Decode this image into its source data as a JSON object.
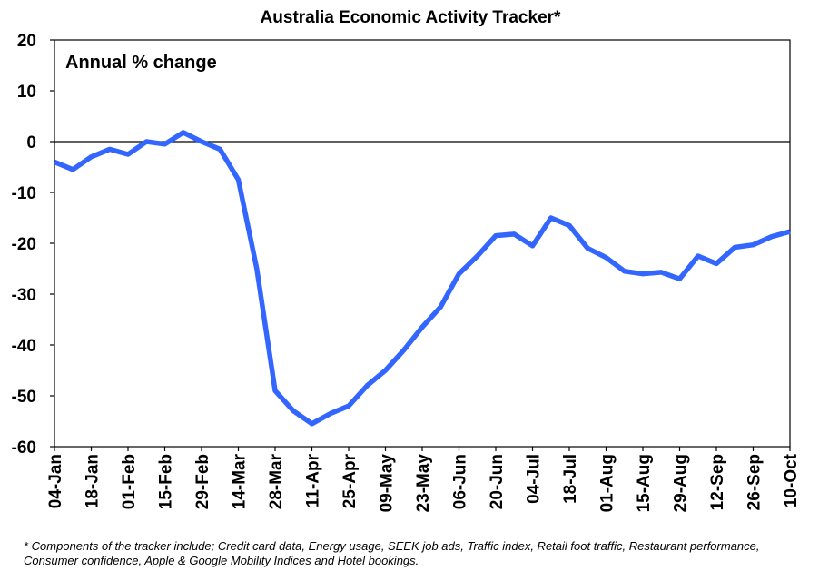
{
  "chart_data": {
    "type": "line",
    "title": "Australia Economic Activity Tracker*",
    "annotation": "Annual % change",
    "ylim": [
      -60,
      20
    ],
    "yticks": [
      20,
      10,
      0,
      -10,
      -20,
      -30,
      -40,
      -50,
      -60
    ],
    "xlim": [
      "2020-01-04",
      "2020-10-10"
    ],
    "x_tick_labels": [
      "04-Jan",
      "18-Jan",
      "01-Feb",
      "15-Feb",
      "29-Feb",
      "14-Mar",
      "28-Mar",
      "11-Apr",
      "25-Apr",
      "09-May",
      "23-May",
      "06-Jun",
      "20-Jun",
      "04-Jul",
      "18-Jul",
      "01-Aug",
      "15-Aug",
      "29-Aug",
      "12-Sep",
      "26-Sep",
      "10-Oct"
    ],
    "x_tick_dates": [
      "2020-01-04",
      "2020-01-18",
      "2020-02-01",
      "2020-02-15",
      "2020-02-29",
      "2020-03-14",
      "2020-03-28",
      "2020-04-11",
      "2020-04-25",
      "2020-05-09",
      "2020-05-23",
      "2020-06-06",
      "2020-06-20",
      "2020-07-04",
      "2020-07-18",
      "2020-08-01",
      "2020-08-15",
      "2020-08-29",
      "2020-09-12",
      "2020-09-26",
      "2020-10-10"
    ],
    "grid": false,
    "series": [
      {
        "color": "#3366ff",
        "points": [
          [
            "2020-01-04",
            -4.0
          ],
          [
            "2020-01-11",
            -5.5
          ],
          [
            "2020-01-18",
            -3.0
          ],
          [
            "2020-01-25",
            -1.5
          ],
          [
            "2020-02-01",
            -2.5
          ],
          [
            "2020-02-08",
            0.0
          ],
          [
            "2020-02-15",
            -0.5
          ],
          [
            "2020-02-22",
            1.8
          ],
          [
            "2020-02-29",
            0.0
          ],
          [
            "2020-03-07",
            -1.5
          ],
          [
            "2020-03-14",
            -7.5
          ],
          [
            "2020-03-21",
            -25.0
          ],
          [
            "2020-03-28",
            -49.0
          ],
          [
            "2020-04-04",
            -53.0
          ],
          [
            "2020-04-11",
            -55.5
          ],
          [
            "2020-04-18",
            -53.5
          ],
          [
            "2020-04-25",
            -52.0
          ],
          [
            "2020-05-02",
            -48.0
          ],
          [
            "2020-05-09",
            -45.0
          ],
          [
            "2020-05-16",
            -41.0
          ],
          [
            "2020-05-23",
            -36.5
          ],
          [
            "2020-05-30",
            -32.5
          ],
          [
            "2020-06-06",
            -26.0
          ],
          [
            "2020-06-13",
            -22.5
          ],
          [
            "2020-06-20",
            -18.5
          ],
          [
            "2020-06-27",
            -18.2
          ],
          [
            "2020-07-04",
            -20.5
          ],
          [
            "2020-07-11",
            -15.0
          ],
          [
            "2020-07-18",
            -16.5
          ],
          [
            "2020-07-25",
            -21.0
          ],
          [
            "2020-08-01",
            -22.8
          ],
          [
            "2020-08-08",
            -25.5
          ],
          [
            "2020-08-15",
            -26.0
          ],
          [
            "2020-08-22",
            -25.7
          ],
          [
            "2020-08-29",
            -27.0
          ],
          [
            "2020-09-05",
            -22.5
          ],
          [
            "2020-09-12",
            -24.0
          ],
          [
            "2020-09-19",
            -20.8
          ],
          [
            "2020-09-26",
            -20.3
          ],
          [
            "2020-10-03",
            -18.7
          ],
          [
            "2020-10-10",
            -17.7
          ]
        ]
      }
    ]
  },
  "footnote": "* Components of the tracker include; Credit card data, Energy usage, SEEK job ads, Traffic index, Retail foot traffic, Restaurant performance, Consumer confidence, Apple & Google Mobility Indices and Hotel bookings."
}
